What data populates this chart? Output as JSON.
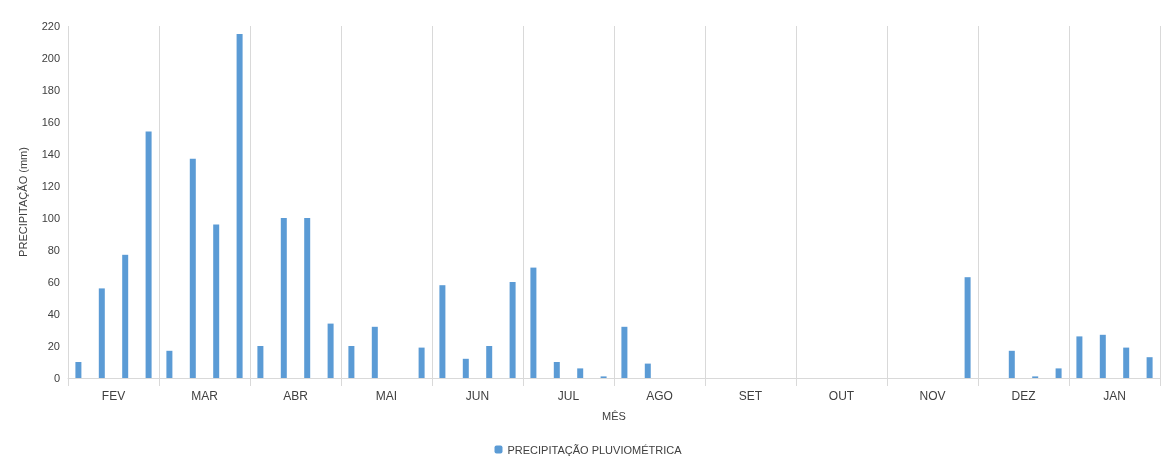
{
  "chart_data": {
    "type": "bar",
    "xlabel": "MÊS",
    "ylabel": "PRECIPITAÇÃO (mm)",
    "categories": [
      "FEV",
      "MAR",
      "ABR",
      "MAI",
      "JUN",
      "JUL",
      "AGO",
      "SET",
      "OUT",
      "NOV",
      "DEZ",
      "JAN"
    ],
    "series": [
      {
        "name": "PRECIPITAÇÃO PLUVIOMÉTRICA",
        "color": "#5b9bd5",
        "values": [
          10,
          17,
          20,
          20,
          58,
          69,
          32,
          null,
          null,
          null,
          null,
          26
        ]
      },
      {
        "color": "#5b9bd5",
        "values": [
          56,
          137,
          100,
          32,
          12,
          10,
          9,
          null,
          null,
          null,
          17,
          27
        ]
      },
      {
        "color": "#5b9bd5",
        "values": [
          77,
          96,
          100,
          null,
          20,
          6,
          null,
          null,
          null,
          null,
          1,
          19
        ]
      },
      {
        "color": "#5b9bd5",
        "values": [
          154,
          215,
          34,
          19,
          60,
          1,
          null,
          null,
          null,
          63,
          6,
          13
        ]
      }
    ],
    "ylim": [
      0,
      220
    ],
    "yticks": [
      0,
      20,
      40,
      60,
      80,
      100,
      120,
      140,
      160,
      180,
      200,
      220
    ],
    "grid": "x",
    "legend": "bottom"
  }
}
